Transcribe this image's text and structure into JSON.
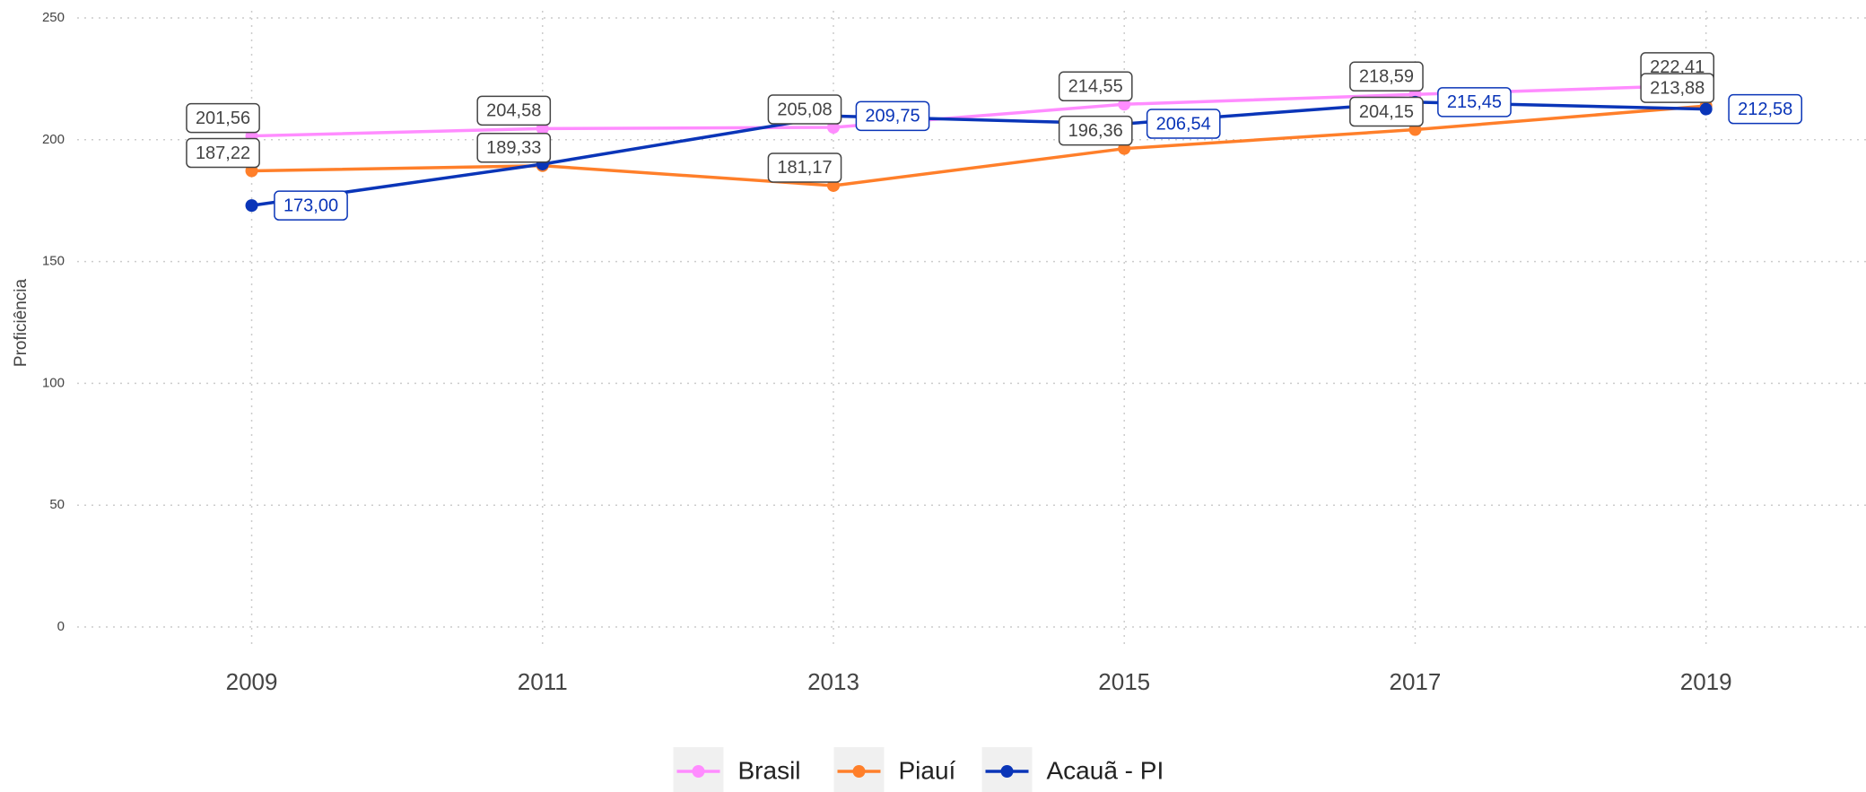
{
  "chart_data": {
    "type": "line",
    "y_label": "Proficiência",
    "x": [
      2009,
      2011,
      2013,
      2015,
      2017,
      2019
    ],
    "xlim": [
      2007.8,
      2020.1
    ],
    "xticks": [
      2009,
      2011,
      2013,
      2015,
      2017,
      2019
    ],
    "ylim": [
      0,
      250
    ],
    "yticks": [
      0,
      50,
      100,
      150,
      200,
      250
    ],
    "grid": true,
    "legend": "bottom",
    "series": [
      {
        "name": "Brasil",
        "color": "#ff8cff",
        "label_color": "#444444",
        "values": [
          201.56,
          204.58,
          205.08,
          214.55,
          218.59,
          222.41
        ],
        "value_labels": [
          "201,56",
          "204,58",
          "205,08",
          "214,55",
          "218,59",
          "222,41"
        ]
      },
      {
        "name": "Piauí",
        "color": "#ff7f2a",
        "label_color": "#444444",
        "values": [
          187.22,
          189.33,
          181.17,
          196.36,
          204.15,
          213.88
        ],
        "value_labels": [
          "187,22",
          "189,33",
          "181,17",
          "196,36",
          "204,15",
          "213,88"
        ]
      },
      {
        "name": "Acauã - PI",
        "color": "#0a35b8",
        "label_color": "#0a35b8",
        "values": [
          173.0,
          190.0,
          209.75,
          206.54,
          215.45,
          212.58
        ],
        "value_labels": [
          "173,00",
          null,
          "209,75",
          "206,54",
          "215,45",
          "212,58"
        ]
      }
    ]
  }
}
